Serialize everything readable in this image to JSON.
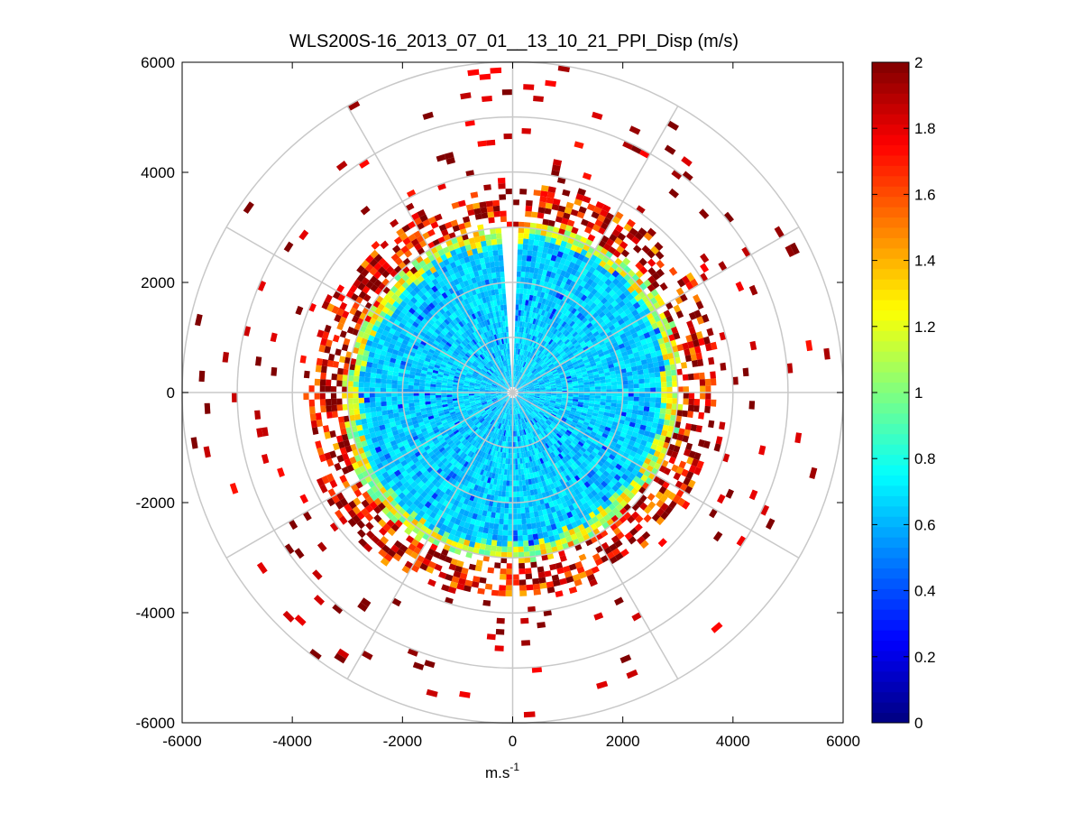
{
  "chart_data": {
    "type": "heatmap",
    "subtype": "polar-ppi",
    "title": "WLS200S-16_2013_07_01__13_10_21_PPI_Disp (m/s)",
    "xlabel": "m.s",
    "xlabel_superscript": "-1",
    "ylabel": "",
    "xlim": [
      -6000,
      6000
    ],
    "ylim": [
      -6000,
      6000
    ],
    "xticks": [
      -6000,
      -4000,
      -2000,
      0,
      2000,
      4000,
      6000
    ],
    "yticks": [
      6000,
      4000,
      2000,
      0,
      -2000,
      -4000,
      -6000
    ],
    "range_rings": [
      1000,
      2000,
      3000,
      4000,
      5000,
      6000
    ],
    "spoke_interval_deg": 30,
    "dense_core_radius": 3000,
    "blind_sector_deg": [
      -4,
      2
    ],
    "colorbar": {
      "min": 0,
      "max": 2,
      "ticks": [
        0,
        0.2,
        0.4,
        0.6,
        0.8,
        1,
        1.2,
        1.4,
        1.6,
        1.8,
        2
      ],
      "colormap": "jet",
      "levels": 64
    }
  }
}
